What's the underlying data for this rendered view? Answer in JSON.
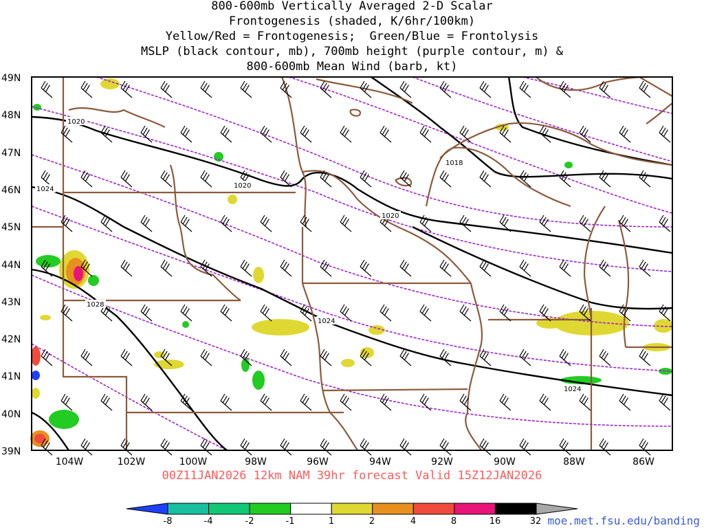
{
  "title_lines": [
    "800-600mb Vertically Averaged 2-D Scalar",
    "Frontogenesis (shaded, K/6hr/100km)",
    "Yellow/Red = Frontogenesis;  Green/Blue = Frontolysis",
    "MSLP (black contour, mb), 700mb height (purple contour, m) &",
    "800-600mb Mean Wind (barb, kt)"
  ],
  "subtitle": "00Z11JAN2026 12km NAM 39hr forecast Valid 15Z12JAN2026",
  "credit": "moe.met.fsu.edu/banding",
  "lat_labels": [
    "49N",
    "48N",
    "47N",
    "46N",
    "45N",
    "44N",
    "43N",
    "42N",
    "41N",
    "40N",
    "39N"
  ],
  "lon_labels": [
    "104W",
    "102W",
    "100W",
    "98W",
    "96W",
    "94W",
    "92W",
    "90W",
    "88W",
    "86W"
  ],
  "mslp_labels": [
    "1020",
    "1020",
    "1018",
    "1020",
    "1024",
    "1024",
    "1028",
    "1024"
  ],
  "colorbar": {
    "labels": [
      "-8",
      "-4",
      "-2",
      "-1",
      "1",
      "2",
      "4",
      "8",
      "16",
      "32"
    ],
    "colors": [
      "#1f3fff",
      "#18c0a0",
      "#10c878",
      "#22cc22",
      "#ffffff",
      "#e0d832",
      "#e8901e",
      "#f04b3c",
      "#e8147a",
      "#000000",
      "#a8a8a8"
    ]
  }
}
